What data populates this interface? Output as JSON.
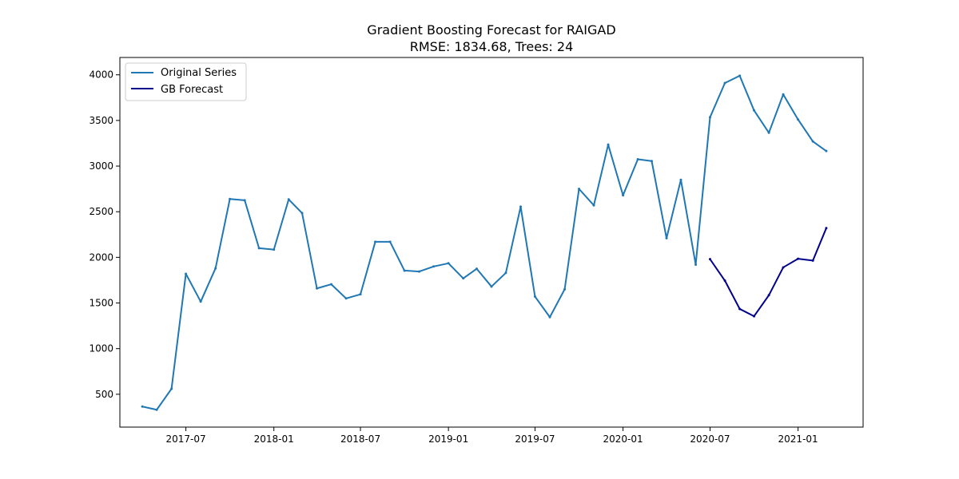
{
  "chart_data": {
    "type": "line",
    "title": "Gradient Boosting Forecast for RAIGAD",
    "subtitle": "RMSE: 1834.68, Trees: 24",
    "xlabel": "",
    "ylabel": "",
    "x_ticks": [
      "2017-07",
      "2018-01",
      "2018-07",
      "2019-01",
      "2019-07",
      "2020-01",
      "2020-07",
      "2021-01"
    ],
    "y_ticks": [
      500,
      1000,
      1500,
      2000,
      2500,
      3000,
      3500,
      4000
    ],
    "xlim": [
      "2017-02-13",
      "2021-05-17"
    ],
    "ylim": [
      140,
      4190
    ],
    "grid": false,
    "legend_position": "top-left",
    "series": [
      {
        "name": "Original Series",
        "color": "#1f77b4",
        "x": [
          "2017-04-01",
          "2017-05-01",
          "2017-06-01",
          "2017-07-01",
          "2017-08-01",
          "2017-09-01",
          "2017-10-01",
          "2017-11-01",
          "2017-12-01",
          "2018-01-01",
          "2018-02-01",
          "2018-03-01",
          "2018-04-01",
          "2018-05-01",
          "2018-06-01",
          "2018-07-01",
          "2018-08-01",
          "2018-09-01",
          "2018-10-01",
          "2018-11-01",
          "2018-12-01",
          "2019-01-01",
          "2019-02-01",
          "2019-03-01",
          "2019-04-01",
          "2019-05-01",
          "2019-06-01",
          "2019-07-01",
          "2019-08-01",
          "2019-09-01",
          "2019-10-01",
          "2019-11-01",
          "2019-12-01",
          "2020-01-01",
          "2020-02-01",
          "2020-03-01",
          "2020-04-01",
          "2020-05-01",
          "2020-06-01",
          "2020-07-01",
          "2020-08-01",
          "2020-09-01",
          "2020-10-01",
          "2020-11-01",
          "2020-12-01",
          "2021-01-01",
          "2021-02-01",
          "2021-03-01"
        ],
        "values": [
          365,
          330,
          560,
          1820,
          1515,
          1880,
          2640,
          2625,
          2100,
          2085,
          2635,
          2485,
          1660,
          1705,
          1550,
          1595,
          2170,
          2170,
          1855,
          1845,
          1900,
          1935,
          1770,
          1875,
          1680,
          1830,
          2555,
          1570,
          1345,
          1650,
          2750,
          2570,
          3235,
          2680,
          3075,
          3055,
          2210,
          2850,
          1920,
          3535,
          3910,
          3990,
          3610,
          3365,
          3785,
          3510,
          3270,
          3165
        ]
      },
      {
        "name": "GB Forecast",
        "color": "#00008b",
        "x": [
          "2020-07-01",
          "2020-08-01",
          "2020-09-01",
          "2020-10-01",
          "2020-11-01",
          "2020-12-01",
          "2021-01-01",
          "2021-02-01",
          "2021-03-01"
        ],
        "values": [
          1980,
          1745,
          1435,
          1355,
          1585,
          1890,
          1985,
          1965,
          2320
        ]
      }
    ]
  }
}
